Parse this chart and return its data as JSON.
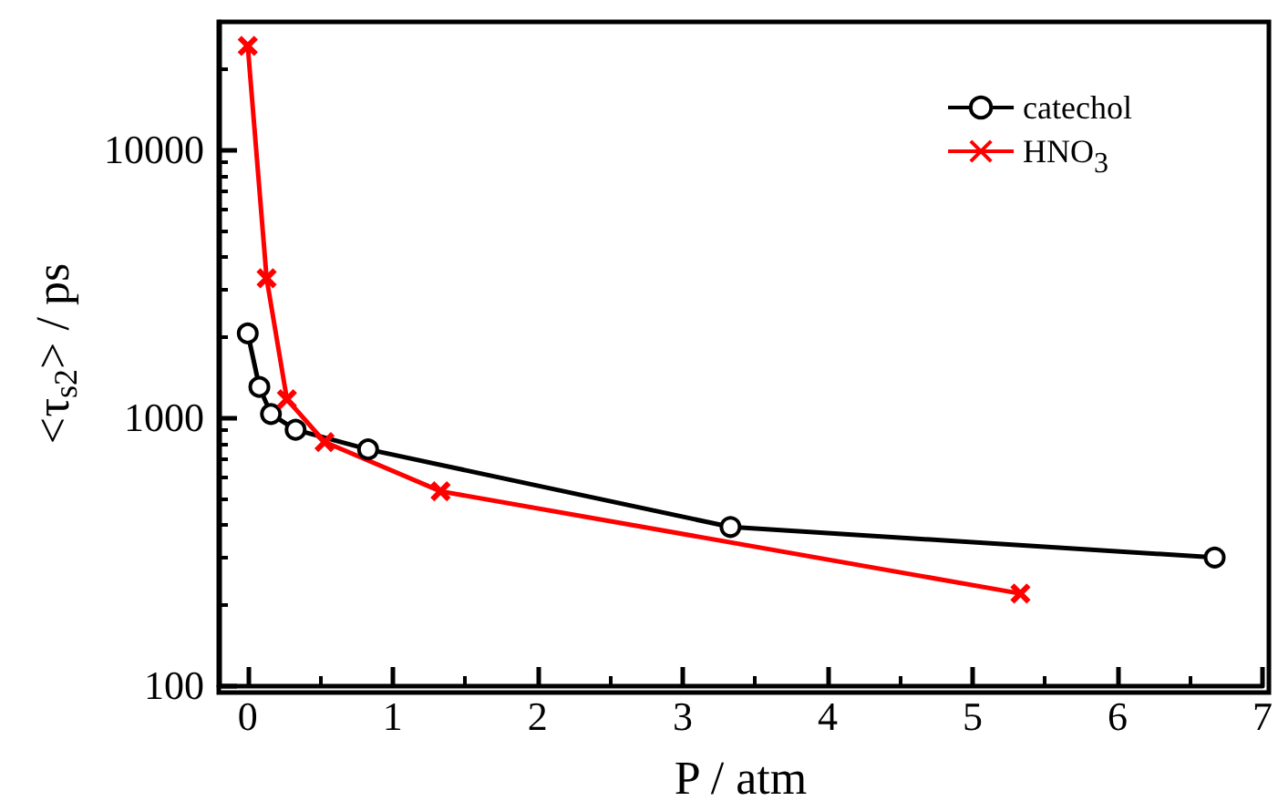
{
  "chart_data": {
    "type": "line",
    "xlabel": "P / atm",
    "ylabel": "<τ$_{s2}$> / ps",
    "xlim": [
      -0.2,
      7
    ],
    "xticks": [
      0,
      1,
      2,
      3,
      4,
      5,
      6,
      7
    ],
    "ylim": [
      100,
      30000
    ],
    "yticks": [
      100,
      1000,
      10000
    ],
    "log": "y",
    "legend": "top right",
    "grid": false,
    "series": [
      {
        "name": "catechol",
        "color": "#000000",
        "marker": "circle",
        "x": [
          0,
          0.08,
          0.16,
          0.33,
          0.83,
          3.33,
          6.67
        ],
        "values": [
          2060,
          1300,
          1030,
          900,
          760,
          390,
          300
        ]
      },
      {
        "name": "HNO$_{3}$",
        "color": "#ff0000",
        "marker": "cross",
        "x": [
          0,
          0.13,
          0.27,
          0.53,
          1.33,
          5.33
        ],
        "values": [
          24400,
          3310,
          1170,
          810,
          530,
          220
        ]
      }
    ]
  }
}
